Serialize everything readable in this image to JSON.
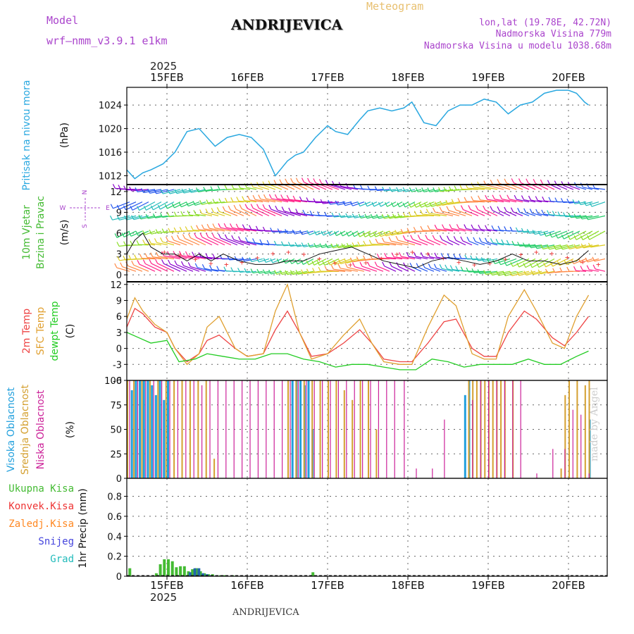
{
  "header": {
    "model_label": "Model",
    "model_name": "wrf–nmm_v3.9.1 e1km",
    "location": "ANDRIJEVICA",
    "product": "Meteogram",
    "coords": "lon,lat (19.78E, 42.72N)",
    "elevation": "Nadmorska Visina 779m",
    "model_elevation": "Nadmorska Visina u modelu 1038.68m",
    "credit": "made by Angel",
    "footer_location": "ANDRIJEVICA",
    "year": "2025"
  },
  "colors": {
    "pressure": "#2aa8e0",
    "wind_speed_label": "#22bb22",
    "temp_2m": "#ee4444",
    "temp_sfc": "#e0a030",
    "dewpoint": "#22cc22",
    "cloud_high": "#22a0dd",
    "cloud_mid": "#d4a030",
    "cloud_low": "#cc2299",
    "precip_total": "#44bb33",
    "precip_conv": "#ee3333",
    "precip_frozen": "#ff8822",
    "snow": "#4444dd",
    "graupel": "#22bbbb",
    "purple_text": "#aa44cc"
  },
  "chart_data": [
    {
      "type": "line",
      "panel": "pressure",
      "ylabel": [
        "Pritisak na nivou mora",
        "(hPa)"
      ],
      "yticks": [
        1012,
        1016,
        1020,
        1024
      ],
      "ylim": [
        1010.5,
        1027
      ],
      "x_day_ticks": [
        "15FEB",
        "16FEB",
        "17FEB",
        "18FEB",
        "19FEB",
        "20FEB"
      ],
      "series": [
        {
          "key": "pressure",
          "x": [
            0,
            0.1,
            0.2,
            0.3,
            0.45,
            0.6,
            0.75,
            0.9,
            1.0,
            1.1,
            1.25,
            1.4,
            1.55,
            1.7,
            1.85,
            2.0,
            2.1,
            2.2,
            2.35,
            2.5,
            2.6,
            2.75,
            2.9,
            3.0,
            3.15,
            3.3,
            3.45,
            3.55,
            3.7,
            3.85,
            4.0,
            4.15,
            4.3,
            4.45,
            4.6,
            4.75,
            4.9,
            5.05,
            5.2,
            5.35,
            5.5,
            5.6,
            5.7,
            5.75
          ],
          "values": [
            1013,
            1011.5,
            1012.5,
            1013,
            1014,
            1016,
            1019.5,
            1020,
            1018.5,
            1017,
            1018.5,
            1019,
            1018.5,
            1016.5,
            1012,
            1014.5,
            1015.5,
            1016,
            1018.5,
            1020.5,
            1019.5,
            1019,
            1021.5,
            1023,
            1023.5,
            1023,
            1023.5,
            1024.5,
            1021,
            1020.5,
            1023,
            1024,
            1024,
            1025,
            1024.5,
            1022.5,
            1024,
            1024.5,
            1026,
            1026.5,
            1026.5,
            1026,
            1024.5,
            1024
          ]
        }
      ]
    },
    {
      "type": "line",
      "panel": "wind",
      "ylabel": [
        "10m Vjetar",
        "Brzina i Pravac",
        "(m/s)"
      ],
      "compass": [
        "N",
        "W",
        "E",
        "S"
      ],
      "yticks": [
        0,
        3,
        6,
        9,
        12
      ],
      "ylim": [
        -1,
        13
      ],
      "series": [
        {
          "key": "speed",
          "x": [
            0,
            0.1,
            0.2,
            0.3,
            0.45,
            0.6,
            0.75,
            0.9,
            1.05,
            1.2,
            1.4,
            1.6,
            1.8,
            2.0,
            2.2,
            2.4,
            2.6,
            2.8,
            3.0,
            3.2,
            3.4,
            3.6,
            3.8,
            4.0,
            4.2,
            4.4,
            4.6,
            4.8,
            5.0,
            5.2,
            5.4,
            5.6,
            5.75
          ],
          "values": [
            3,
            5,
            6,
            4,
            3,
            3,
            2,
            3,
            2,
            3,
            2,
            1.5,
            1.5,
            2,
            2,
            3,
            3.5,
            4,
            3,
            2,
            1.5,
            1,
            2,
            2.5,
            2,
            1.5,
            2,
            3,
            2,
            2,
            1.5,
            2,
            3.5
          ]
        }
      ]
    },
    {
      "type": "line",
      "panel": "temperature",
      "ylabel": [
        "2m Temp",
        "SFC Temp",
        "dewpt Temp",
        "(C)"
      ],
      "yticks": [
        -6,
        -3,
        0,
        3,
        6,
        9,
        12
      ],
      "ylim": [
        -6,
        12.5
      ],
      "series": [
        {
          "name": "2m Temp",
          "key": "t2m",
          "x": [
            0,
            0.1,
            0.2,
            0.35,
            0.5,
            0.6,
            0.75,
            0.9,
            1.0,
            1.15,
            1.35,
            1.5,
            1.7,
            1.85,
            2.0,
            2.15,
            2.3,
            2.5,
            2.7,
            2.9,
            3.05,
            3.2,
            3.4,
            3.55,
            3.75,
            3.95,
            4.1,
            4.3,
            4.45,
            4.6,
            4.75,
            4.95,
            5.1,
            5.3,
            5.45,
            5.6,
            5.75
          ],
          "values": [
            4,
            7.5,
            6.5,
            4,
            3,
            0,
            -2.5,
            -1,
            1.5,
            2.5,
            0,
            -1.5,
            -1,
            3.5,
            7,
            3,
            -1.5,
            -1,
            1,
            3.5,
            1,
            -2,
            -2.5,
            -2.5,
            1,
            5,
            5.5,
            0,
            -1.5,
            -1.5,
            3,
            7,
            5.5,
            2,
            0.5,
            3,
            6
          ]
        },
        {
          "name": "SFC Temp",
          "key": "tsfc",
          "x": [
            0,
            0.1,
            0.2,
            0.35,
            0.5,
            0.6,
            0.75,
            0.9,
            1.0,
            1.15,
            1.35,
            1.5,
            1.7,
            1.85,
            2.0,
            2.15,
            2.3,
            2.5,
            2.7,
            2.9,
            3.05,
            3.2,
            3.4,
            3.55,
            3.75,
            3.95,
            4.1,
            4.3,
            4.45,
            4.6,
            4.75,
            4.95,
            5.1,
            5.3,
            5.45,
            5.6,
            5.75
          ],
          "values": [
            5.5,
            9.5,
            7,
            4.5,
            3,
            0,
            -3,
            -1,
            4,
            6,
            0,
            -1.5,
            -1,
            7,
            12,
            3,
            -2,
            -1,
            2.5,
            5.5,
            1,
            -2.5,
            -3,
            -3,
            4,
            10,
            8,
            -1,
            -2,
            -2,
            6,
            11,
            7,
            1,
            0,
            6,
            10
          ]
        },
        {
          "name": "dewpt Temp",
          "key": "dew",
          "x": [
            0,
            0.15,
            0.3,
            0.5,
            0.65,
            0.85,
            1.0,
            1.2,
            1.4,
            1.6,
            1.8,
            2.0,
            2.2,
            2.4,
            2.6,
            2.8,
            3.0,
            3.2,
            3.4,
            3.6,
            3.8,
            4.0,
            4.2,
            4.4,
            4.6,
            4.8,
            5.0,
            5.2,
            5.4,
            5.6,
            5.75
          ],
          "values": [
            3,
            2,
            1,
            1.5,
            -2.5,
            -2,
            -1,
            -1.5,
            -2,
            -2,
            -1,
            -1,
            -2,
            -2.5,
            -3.5,
            -3,
            -3,
            -3.5,
            -4,
            -4,
            -2,
            -2.5,
            -3.5,
            -3,
            -3,
            -3,
            -2,
            -3,
            -3,
            -1.5,
            -0.5
          ]
        }
      ]
    },
    {
      "type": "bar",
      "panel": "clouds",
      "ylabel": [
        "Visoka Oblacnost",
        "Srednja Oblacnost",
        "Niska Oblacnost",
        "(%)"
      ],
      "yticks": [
        0,
        25,
        50,
        75,
        100
      ],
      "ylim": [
        0,
        100
      ],
      "series": [
        {
          "name": "Visoka Oblacnost",
          "key": "high",
          "x": [
            0.05,
            0.1,
            0.15,
            0.2,
            0.25,
            0.3,
            0.35,
            0.4,
            0.45,
            0.5,
            2.05,
            2.1,
            2.15,
            2.2,
            2.25,
            2.3,
            4.2,
            4.25,
            5.75
          ],
          "values": [
            90,
            100,
            100,
            100,
            100,
            95,
            85,
            100,
            80,
            100,
            100,
            100,
            100,
            95,
            100,
            50,
            85,
            100,
            60
          ]
        },
        {
          "name": "Srednja Oblacnost",
          "key": "mid",
          "x": [
            0.0,
            0.08,
            0.18,
            0.28,
            0.38,
            0.48,
            0.58,
            0.68,
            0.78,
            0.88,
            0.98,
            1.08,
            2.0,
            2.1,
            2.2,
            2.3,
            2.4,
            2.5,
            2.6,
            2.7,
            2.8,
            2.9,
            3.0,
            3.1,
            4.25,
            4.3,
            4.35,
            4.4,
            4.45,
            4.5,
            4.55,
            4.6,
            4.65,
            4.7,
            4.8,
            5.4,
            5.45,
            5.5,
            5.6,
            5.7,
            5.75
          ],
          "values": [
            100,
            100,
            100,
            100,
            100,
            100,
            100,
            100,
            100,
            100,
            100,
            20,
            100,
            100,
            100,
            100,
            100,
            100,
            100,
            90,
            80,
            100,
            100,
            50,
            100,
            100,
            100,
            100,
            100,
            100,
            100,
            100,
            100,
            100,
            100,
            10,
            85,
            100,
            100,
            95,
            100
          ]
        },
        {
          "name": "Niska Oblacnost",
          "key": "low",
          "x": [
            0.03,
            0.13,
            0.23,
            0.33,
            0.43,
            0.53,
            0.63,
            0.73,
            0.83,
            0.93,
            1.03,
            1.13,
            1.23,
            1.33,
            1.43,
            1.53,
            1.63,
            1.73,
            1.83,
            1.93,
            2.03,
            2.13,
            2.23,
            2.33,
            2.43,
            2.53,
            2.63,
            2.73,
            2.83,
            2.93,
            3.03,
            3.13,
            3.23,
            3.33,
            3.45,
            3.6,
            3.8,
            3.95,
            4.3,
            4.4,
            4.5,
            4.6,
            4.7,
            4.8,
            4.9,
            5.1,
            5.3,
            5.45,
            5.55,
            5.65,
            5.75
          ],
          "values": [
            100,
            100,
            100,
            100,
            100,
            100,
            100,
            100,
            100,
            95,
            100,
            100,
            100,
            100,
            100,
            100,
            100,
            100,
            100,
            100,
            100,
            100,
            100,
            100,
            100,
            100,
            100,
            100,
            100,
            100,
            100,
            100,
            100,
            100,
            100,
            10,
            10,
            60,
            80,
            100,
            100,
            100,
            100,
            100,
            100,
            5,
            30,
            30,
            70,
            65,
            5
          ]
        }
      ]
    },
    {
      "type": "bar",
      "panel": "precip",
      "ylabel": [
        "1hr Precip (mm)"
      ],
      "legend": [
        "Ukupna Kisa",
        "Konvek.Kisa",
        "Zaledj.Kisa",
        "Snijeg",
        "Grad"
      ],
      "yticks": [
        0,
        0.2,
        0.4,
        0.6,
        0.8
      ],
      "ylim": [
        0,
        0.98
      ],
      "series": [
        {
          "name": "Ukupna Kisa",
          "key": "rain",
          "x": [
            0.02,
            0.35,
            0.4,
            0.45,
            0.5,
            0.55,
            0.6,
            0.65,
            0.7,
            0.75,
            0.8,
            0.85,
            0.9,
            0.95,
            1.0,
            1.05,
            1.1,
            1.15,
            1.2,
            1.3,
            2.3
          ],
          "values": [
            0.08,
            0.03,
            0.12,
            0.17,
            0.17,
            0.15,
            0.09,
            0.1,
            0.1,
            0.05,
            0.07,
            0.08,
            0.05,
            0.03,
            0.02,
            0.02,
            0.01,
            0.01,
            0.01,
            0.01,
            0.04
          ]
        },
        {
          "name": "Snijeg",
          "key": "snow",
          "x": [
            0.77,
            0.83,
            0.88,
            0.93,
            0.98,
            1.03,
            1.1
          ],
          "values": [
            0.04,
            0.08,
            0.08,
            0.03,
            0.02,
            0.01,
            0.01
          ]
        }
      ]
    }
  ]
}
